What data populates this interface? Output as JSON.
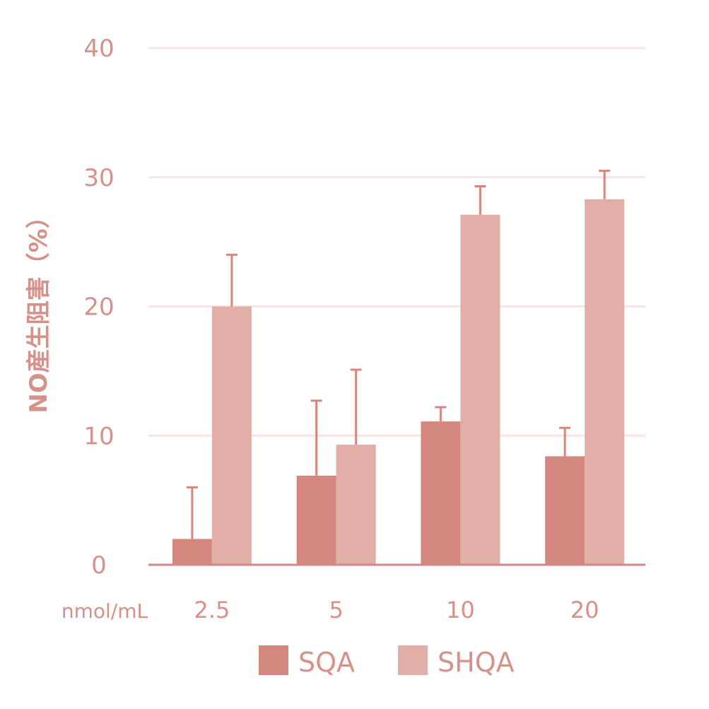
{
  "chart_data": {
    "type": "bar",
    "ylabel": "NO産生阻害（%）",
    "xunit_label": "nmol/mL",
    "categories": [
      "2.5",
      "5",
      "10",
      "20"
    ],
    "ylim": [
      0,
      40
    ],
    "yticks": [
      "0",
      "10",
      "20",
      "30",
      "40"
    ],
    "ytick_values": [
      0,
      10,
      20,
      30,
      40
    ],
    "grid": true,
    "legend_position": "bottom",
    "series": [
      {
        "name": "SQA",
        "color": "#d4877e",
        "values": [
          2.0,
          6.9,
          11.1,
          8.4
        ],
        "errors": [
          4.0,
          5.8,
          1.1,
          2.2
        ]
      },
      {
        "name": "SHQA",
        "color": "#e2aea8",
        "values": [
          20.0,
          9.3,
          27.1,
          28.3
        ],
        "errors": [
          4.0,
          5.8,
          2.2,
          2.2
        ]
      }
    ]
  }
}
